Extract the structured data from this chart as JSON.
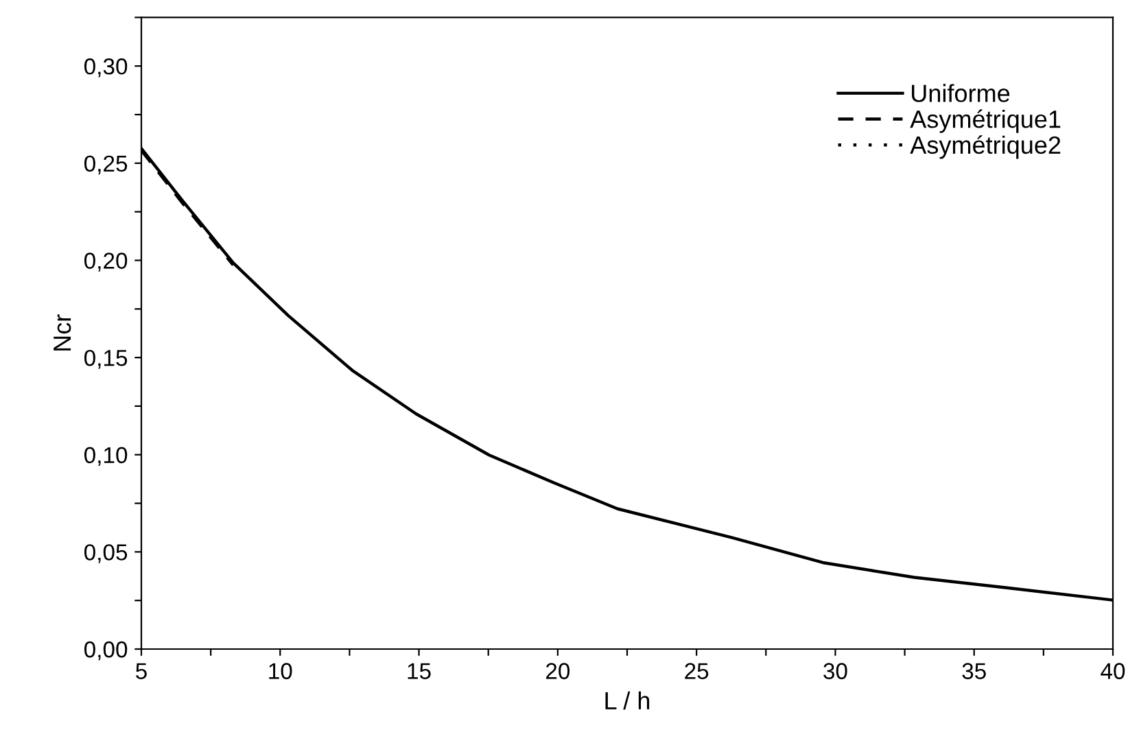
{
  "chart_data": {
    "type": "line",
    "xlabel": "L / h",
    "ylabel": "Ncr",
    "x": [
      5,
      6.5,
      8.31,
      10.29,
      12.6,
      14.9,
      17.53,
      19.84,
      22.15,
      26.26,
      29.55,
      32.84,
      36.14,
      40
    ],
    "series": [
      {
        "name": "Uniforme",
        "color": "#000000",
        "line_style": "solid",
        "values": [
          0.2576,
          0.2304,
          0.1987,
          0.1716,
          0.1434,
          0.121,
          0.0998,
          0.0857,
          0.0722,
          0.0574,
          0.0445,
          0.0369,
          0.0316,
          0.0252
        ]
      },
      {
        "name": "Asymétrique1",
        "color": "#000000",
        "line_style": "dashed",
        "values": [
          0.2566,
          0.2292,
          0.1976,
          null,
          null,
          null,
          null,
          null,
          null,
          null,
          null,
          null,
          null,
          null
        ]
      },
      {
        "name": "Asymétrique2",
        "color": "#000000",
        "line_style": "dotted",
        "values": [
          null,
          null,
          null,
          null,
          null,
          null,
          null,
          null,
          null,
          null,
          null,
          null,
          null,
          null
        ]
      }
    ],
    "xlim": [
      5,
      40
    ],
    "xticks": [
      5,
      {
        "value": 7.5,
        "label": null
      },
      10,
      {
        "value": 12.5,
        "label": null
      },
      15,
      {
        "value": 17.5,
        "label": null
      },
      20,
      {
        "value": 22.5,
        "label": null
      },
      25,
      {
        "value": 27.5,
        "label": null
      },
      30,
      {
        "value": 32.5,
        "label": null
      },
      35,
      {
        "value": 37.5,
        "label": null
      },
      40
    ],
    "ylim": [
      0,
      0.325
    ],
    "yticks": [
      {
        "value": 0,
        "label": "0,00"
      },
      {
        "value": 0.025,
        "label": null
      },
      {
        "value": 0.05,
        "label": "0,05"
      },
      {
        "value": 0.075,
        "label": null
      },
      {
        "value": 0.1,
        "label": "0,10"
      },
      {
        "value": 0.125,
        "label": null
      },
      {
        "value": 0.15,
        "label": "0,15"
      },
      {
        "value": 0.175,
        "label": null
      },
      {
        "value": 0.2,
        "label": "0,20"
      },
      {
        "value": 0.225,
        "label": null
      },
      {
        "value": 0.25,
        "label": "0,25"
      },
      {
        "value": 0.275,
        "label": null
      },
      {
        "value": 0.3,
        "label": "0,30"
      },
      {
        "value": 0.325,
        "label": null
      }
    ],
    "legend": "top right",
    "grid": false
  }
}
